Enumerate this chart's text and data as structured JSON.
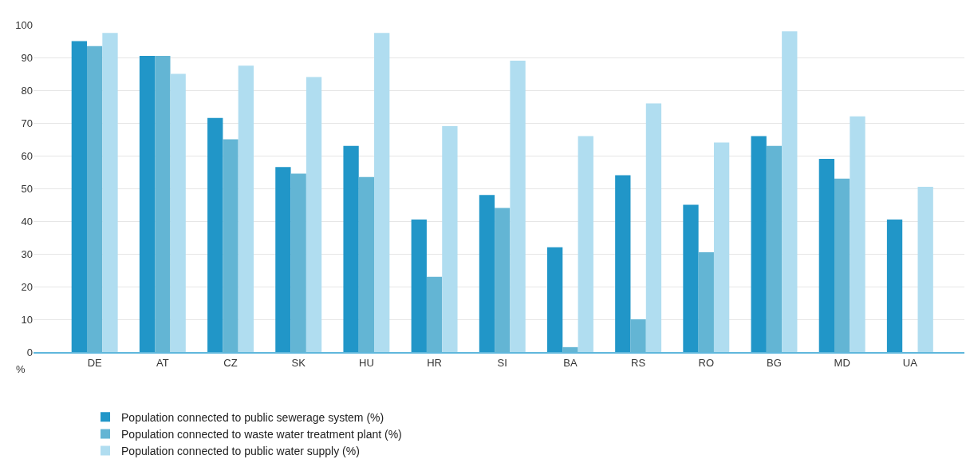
{
  "chart_data": {
    "type": "bar",
    "ylabel": "%",
    "categories": [
      "DE",
      "AT",
      "CZ",
      "SK",
      "HU",
      "HR",
      "SI",
      "BA",
      "RS",
      "RO",
      "BG",
      "MD",
      "UA"
    ],
    "series": [
      {
        "name": "Population connected to public sewerage system (%)",
        "color": "#2196c8",
        "values": [
          95,
          90.5,
          71.5,
          56.5,
          63,
          40.5,
          48,
          32,
          54,
          45,
          66,
          59,
          40.5
        ]
      },
      {
        "name": "Population connected to waste water treatment plant (%)",
        "color": "#63b5d4",
        "values": [
          93.5,
          90.5,
          65,
          54.5,
          53.5,
          23,
          44,
          1.5,
          10,
          30.5,
          63,
          53,
          null
        ]
      },
      {
        "name": "Population connected to public water supply (%)",
        "color": "#b0ddf0",
        "values": [
          97.5,
          85,
          87.5,
          84,
          97.5,
          69,
          89,
          66,
          76,
          64,
          98,
          72,
          50.5
        ]
      }
    ],
    "ylim": [
      0,
      100
    ],
    "yticks": [
      0,
      10,
      20,
      30,
      40,
      50,
      60,
      70,
      80,
      90,
      100
    ],
    "grid": "y",
    "legend": "bottom"
  }
}
